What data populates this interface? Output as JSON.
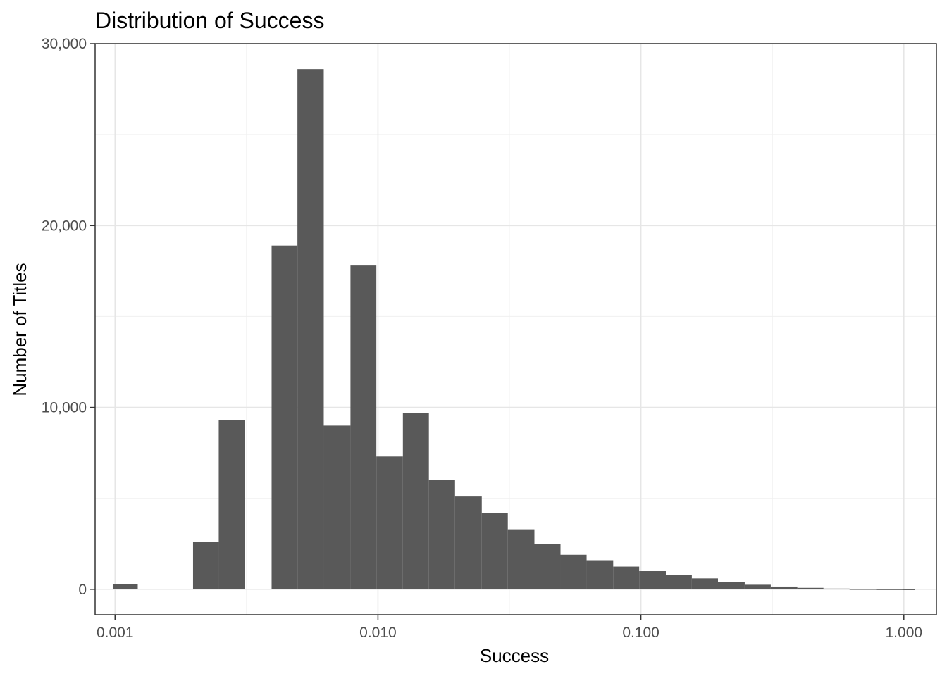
{
  "chart_data": {
    "type": "bar",
    "title": "Distribution of Success",
    "xlabel": "Success",
    "ylabel": "Number of Titles",
    "x_scale": "log10",
    "x_ticks": [
      0.001,
      0.01,
      0.1,
      1
    ],
    "x_tick_labels": [
      "0.001",
      "0.010",
      "0.100",
      "1.000"
    ],
    "y_ticks": [
      0,
      10000,
      20000,
      30000
    ],
    "y_tick_labels": [
      "0",
      "10,000",
      "20,000",
      "30,000"
    ],
    "ylim": [
      -1400,
      30000
    ],
    "xlim": [
      0.00084,
      1.33
    ],
    "grid": true,
    "bar_color": "#595959",
    "bins": [
      {
        "x0": 0.00098,
        "x1": 0.00122,
        "value": 300
      },
      {
        "x0": 0.00122,
        "x1": 0.00152,
        "value": 0
      },
      {
        "x0": 0.00152,
        "x1": 0.00198,
        "value": 0
      },
      {
        "x0": 0.00198,
        "x1": 0.00248,
        "value": 2600
      },
      {
        "x0": 0.00248,
        "x1": 0.00312,
        "value": 9300
      },
      {
        "x0": 0.00312,
        "x1": 0.00394,
        "value": 0
      },
      {
        "x0": 0.00394,
        "x1": 0.00494,
        "value": 18900
      },
      {
        "x0": 0.00494,
        "x1": 0.00622,
        "value": 28600
      },
      {
        "x0": 0.00622,
        "x1": 0.00786,
        "value": 9000
      },
      {
        "x0": 0.00786,
        "x1": 0.00986,
        "value": 17800
      },
      {
        "x0": 0.00986,
        "x1": 0.01244,
        "value": 7300
      },
      {
        "x0": 0.01244,
        "x1": 0.01562,
        "value": 9700
      },
      {
        "x0": 0.01562,
        "x1": 0.01964,
        "value": 6000
      },
      {
        "x0": 0.01964,
        "x1": 0.02482,
        "value": 5100
      },
      {
        "x0": 0.02482,
        "x1": 0.03118,
        "value": 4200
      },
      {
        "x0": 0.03118,
        "x1": 0.03936,
        "value": 3300
      },
      {
        "x0": 0.03936,
        "x1": 0.04946,
        "value": 2500
      },
      {
        "x0": 0.04946,
        "x1": 0.06216,
        "value": 1900
      },
      {
        "x0": 0.06216,
        "x1": 0.07846,
        "value": 1600
      },
      {
        "x0": 0.07846,
        "x1": 0.09852,
        "value": 1250
      },
      {
        "x0": 0.09852,
        "x1": 0.1244,
        "value": 1000
      },
      {
        "x0": 0.1244,
        "x1": 0.1562,
        "value": 800
      },
      {
        "x0": 0.1562,
        "x1": 0.1964,
        "value": 600
      },
      {
        "x0": 0.1964,
        "x1": 0.2482,
        "value": 400
      },
      {
        "x0": 0.2482,
        "x1": 0.3118,
        "value": 250
      },
      {
        "x0": 0.3118,
        "x1": 0.3935,
        "value": 150
      },
      {
        "x0": 0.3935,
        "x1": 0.4946,
        "value": 80
      },
      {
        "x0": 0.4946,
        "x1": 0.6216,
        "value": 40
      },
      {
        "x0": 0.6216,
        "x1": 0.7846,
        "value": 20
      },
      {
        "x0": 0.7846,
        "x1": 0.9852,
        "value": 10
      },
      {
        "x0": 0.9852,
        "x1": 1.1,
        "value": 5
      }
    ]
  }
}
